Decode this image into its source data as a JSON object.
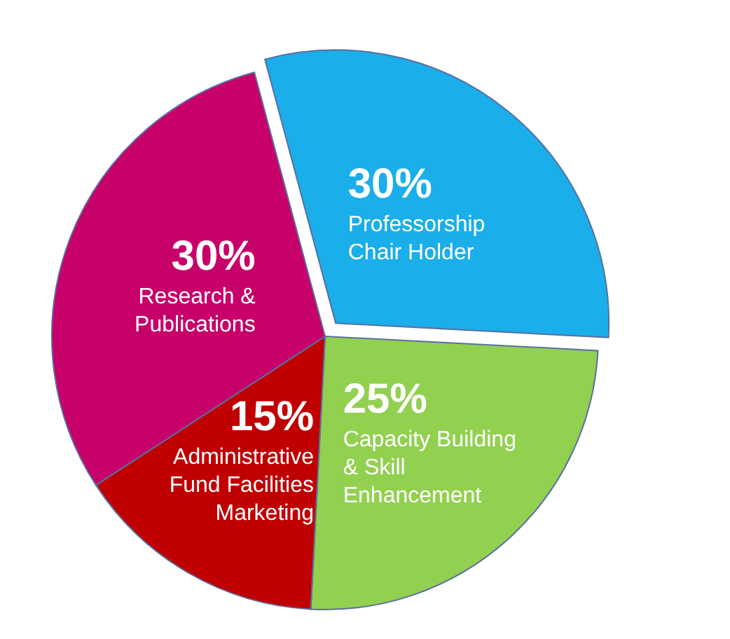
{
  "chart_data": {
    "type": "pie",
    "categories": [
      "Professorship\nChair Holder",
      "Capacity Building\n& Skill\nEnhancement",
      "Administrative\nFund Facilities\nMarketing",
      "Research &\nPublications"
    ],
    "values": [
      30,
      25,
      15,
      30
    ],
    "colors": [
      "#1aaeea",
      "#92d050",
      "#c00000",
      "#c8006a"
    ],
    "value_labels": [
      "30%",
      "25%",
      "15%",
      "30%"
    ]
  }
}
